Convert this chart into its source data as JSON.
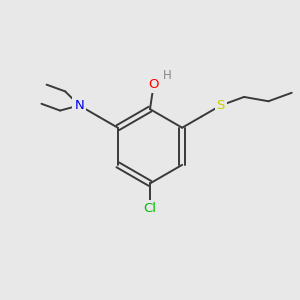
{
  "background_color": "#e8e8e8",
  "bond_color": "#3a3a3a",
  "atom_colors": {
    "O": "#ff0000",
    "H_on_O": "#888888",
    "N": "#0000ee",
    "S": "#cccc00",
    "Cl": "#00bb00"
  },
  "figsize": [
    3.0,
    3.0
  ],
  "dpi": 100
}
